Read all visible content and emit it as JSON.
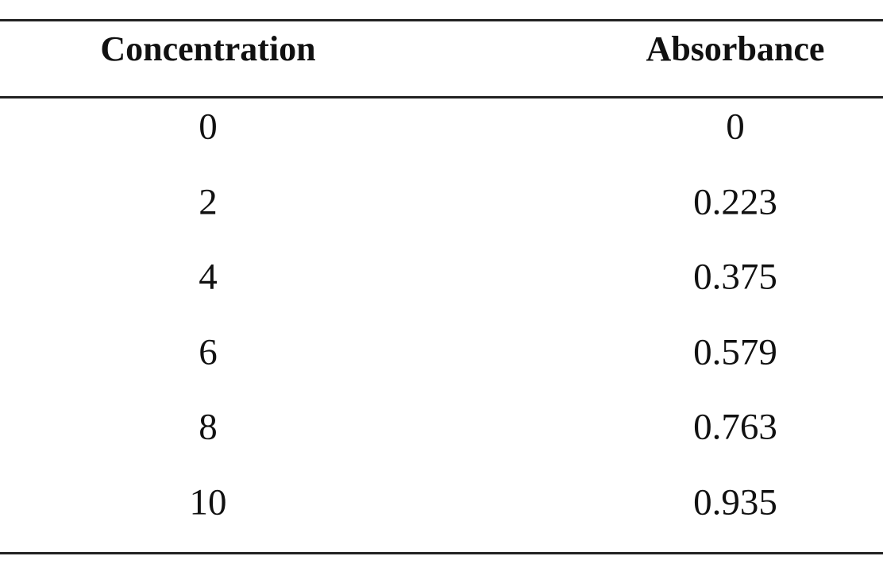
{
  "table": {
    "headers": [
      "Concentration",
      "Absorbance"
    ],
    "rows": [
      [
        "0",
        "0"
      ],
      [
        "2",
        "0.223"
      ],
      [
        "4",
        "0.375"
      ],
      [
        "6",
        "0.579"
      ],
      [
        "8",
        "0.763"
      ],
      [
        "10",
        "0.935"
      ]
    ]
  }
}
